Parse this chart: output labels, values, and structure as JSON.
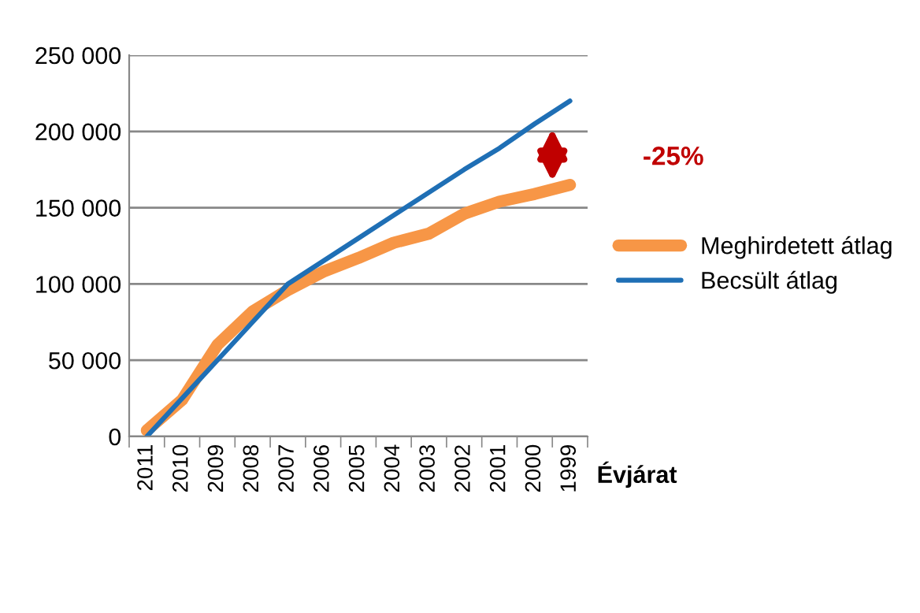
{
  "chart_data": {
    "type": "line",
    "xlabel": "Évjárat",
    "categories": [
      "2011",
      "2010",
      "2009",
      "2008",
      "2007",
      "2006",
      "2005",
      "2004",
      "2003",
      "2002",
      "2001",
      "2000",
      "1999"
    ],
    "series": [
      {
        "name": "Meghirdetett átlag",
        "color": "#f79646",
        "values": [
          4000,
          24000,
          60000,
          82000,
          96000,
          108000,
          117000,
          127000,
          133000,
          146000,
          154000,
          159000,
          165000
        ]
      },
      {
        "name": "Becsült átlag",
        "color": "#1f6fb5",
        "values": [
          0,
          25000,
          50000,
          75000,
          100000,
          115000,
          130000,
          145000,
          160000,
          175000,
          189000,
          205000,
          220000
        ]
      }
    ],
    "ylim": [
      0,
      250000
    ],
    "yticks": [
      {
        "value": 0,
        "label": "0"
      },
      {
        "value": 50000,
        "label": "50 000"
      },
      {
        "value": 100000,
        "label": "100 000"
      },
      {
        "value": 150000,
        "label": "150 000"
      },
      {
        "value": 200000,
        "label": "200 000"
      },
      {
        "value": 250000,
        "label": "250 000"
      }
    ],
    "grid": "y",
    "legend": "right",
    "marker": "none",
    "line_style": "solid",
    "annotations": [
      "-25%"
    ]
  }
}
